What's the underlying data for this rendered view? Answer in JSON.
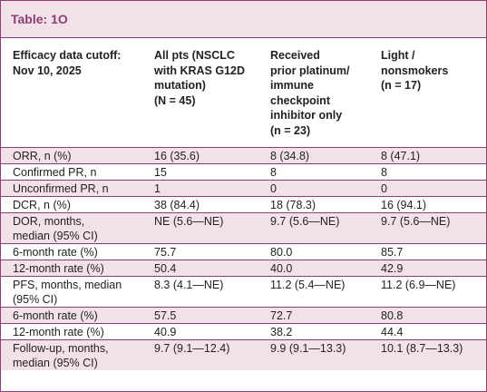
{
  "title": "Table: 1O",
  "header": {
    "col1": "Efficacy data cutoff: Nov 10, 2025",
    "col2": "All pts (NSCLC with KRAS G12D mutation) (N = 45)",
    "col3": "Received prior platinum/ immune checkpoint inhibitor only (n = 23)",
    "col4": "Light / nonsmokers (n = 17)"
  },
  "rows": [
    {
      "label": "ORR, n (%)",
      "all": "16 (35.6)",
      "prior": "8 (34.8)",
      "light": "8 (47.1)"
    },
    {
      "label": "Confirmed PR, n",
      "all": "15",
      "prior": "8",
      "light": "8"
    },
    {
      "label": "Unconfirmed PR, n",
      "all": "1",
      "prior": "0",
      "light": "0"
    },
    {
      "label": "DCR, n (%)",
      "all": "38 (84.4)",
      "prior": "18 (78.3)",
      "light": "16 (94.1)"
    },
    {
      "label": "DOR, months, median (95% CI)",
      "all": "NE (5.6—NE)",
      "prior": "9.7 (5.6—NE)",
      "light": "9.7 (5.6—NE)"
    },
    {
      "label": "6-month rate (%)",
      "all": "75.7",
      "prior": "80.0",
      "light": "85.7"
    },
    {
      "label": "12-month rate (%)",
      "all": "50.4",
      "prior": "40.0",
      "light": "42.9"
    },
    {
      "label": "PFS, months, median (95% CI)",
      "all": "8.3 (4.1—NE)",
      "prior": "11.2 (5.4—NE)",
      "light": "11.2 (6.9—NE)"
    },
    {
      "label": "6-month rate (%)",
      "all": "57.5",
      "prior": "72.7",
      "light": "80.8"
    },
    {
      "label": "12-month rate (%)",
      "all": "40.9",
      "prior": "38.2",
      "light": "44.4"
    },
    {
      "label": "Follow-up, months, median (95% CI)",
      "all": "9.7 (9.1—12.4)",
      "prior": "9.9 (9.1—13.3)",
      "light": "10.1 (8.7—13.3)"
    }
  ],
  "colors": {
    "accent": "#8c3f72",
    "band": "#f3e1ea"
  }
}
